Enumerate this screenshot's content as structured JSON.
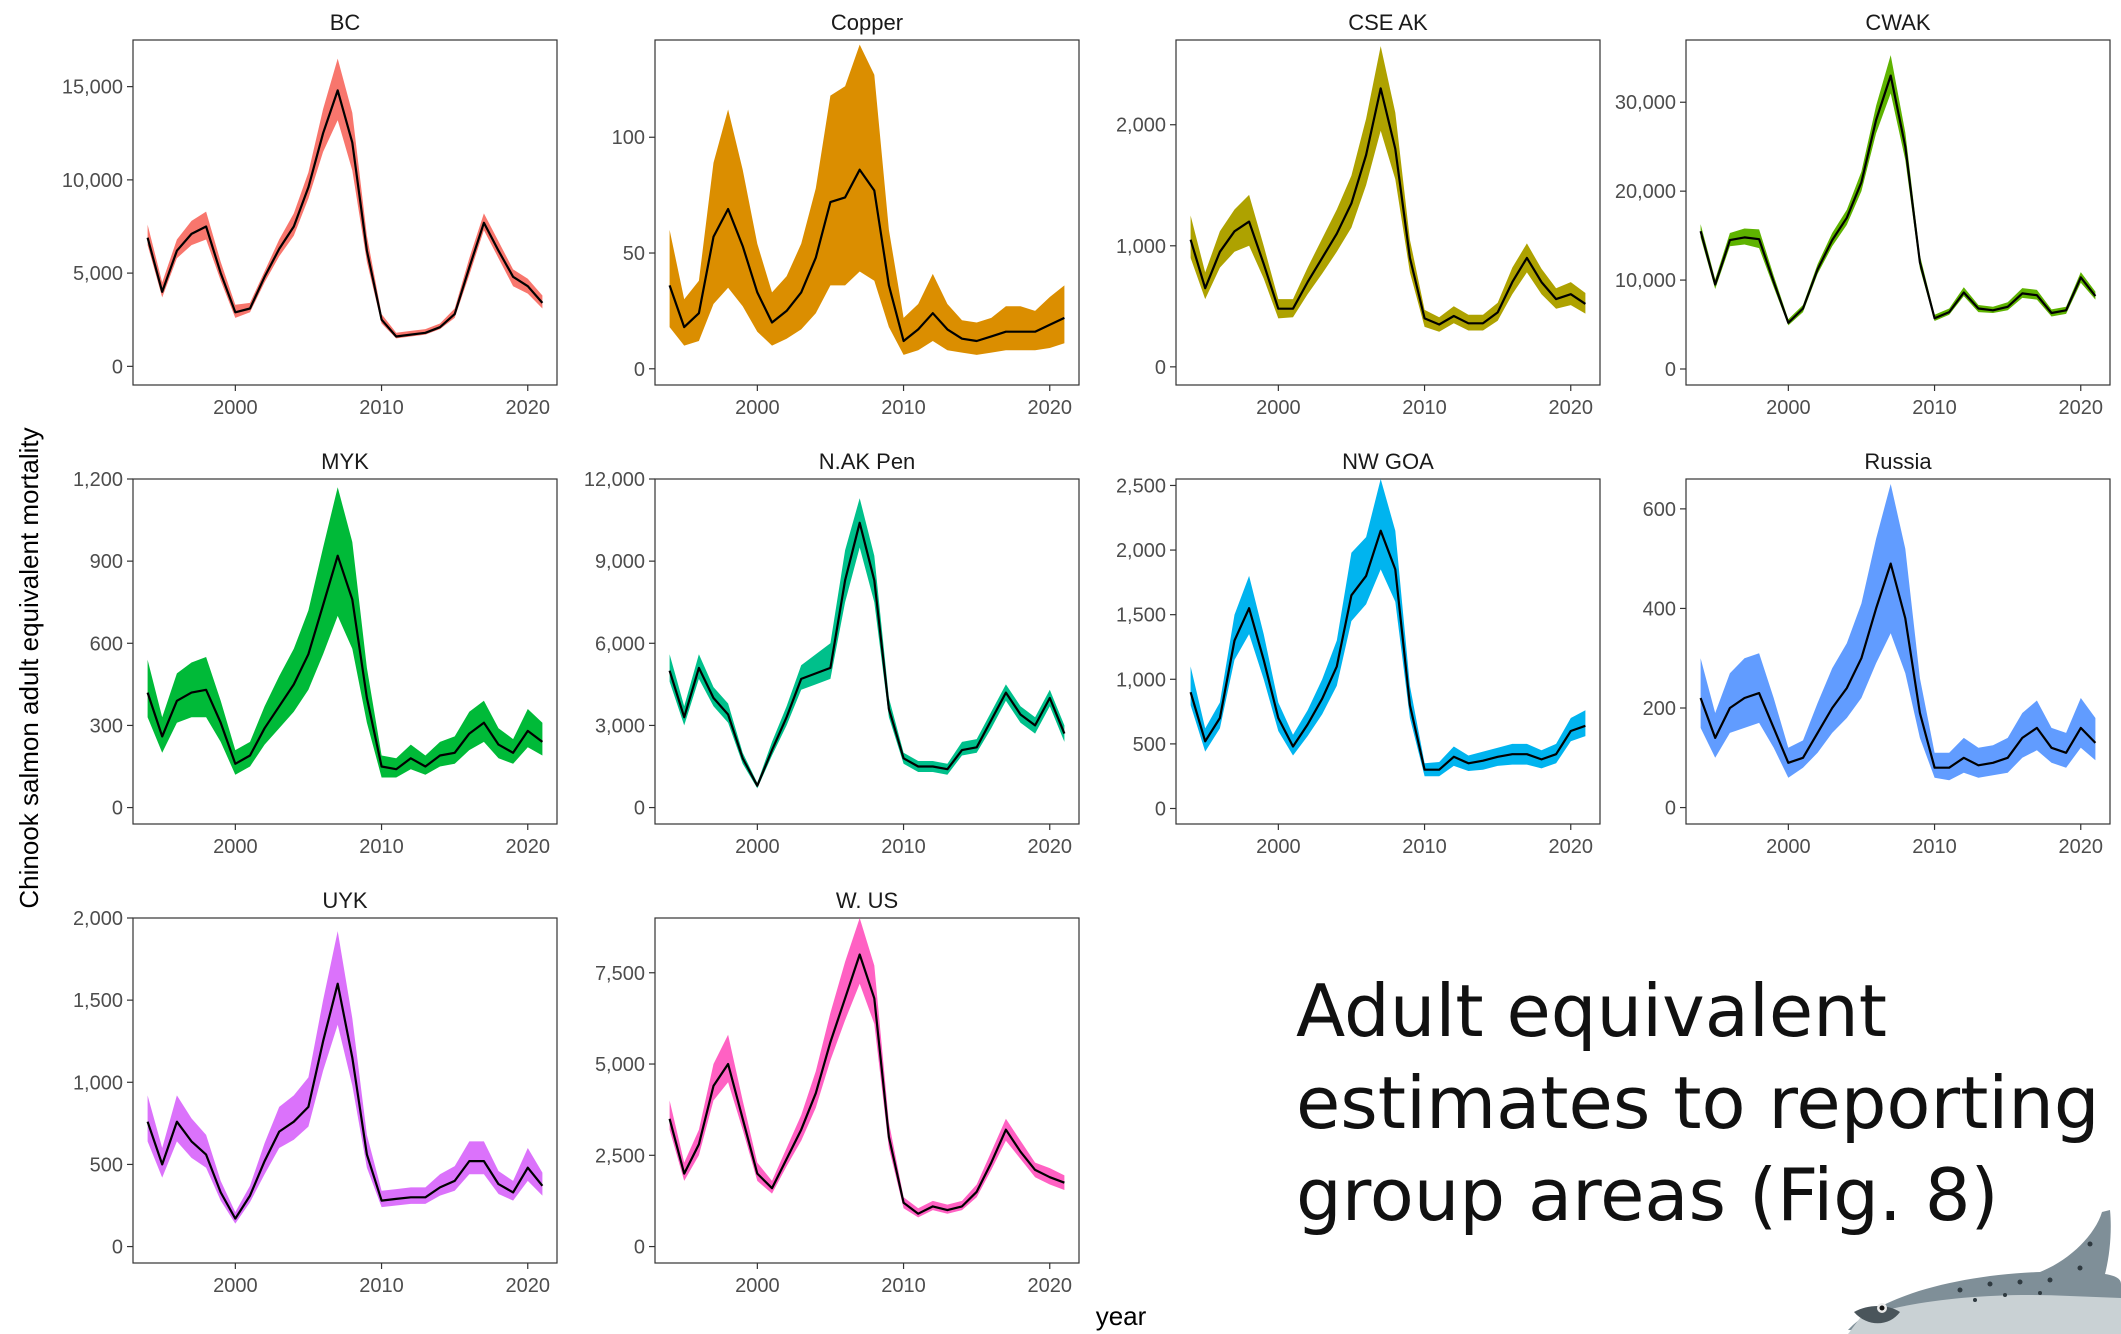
{
  "slide_title": {
    "line1": "Adult equivalent",
    "line2": "estimates to reporting",
    "line3": "group areas (Fig. 8)"
  },
  "fish_icon_name": "chinook-salmon-icon",
  "chart_data": {
    "type": "area",
    "xlabel": "year",
    "ylabel": "Chinook salmon adult equivalent mortality",
    "x": [
      1994,
      1995,
      1996,
      1997,
      1998,
      1999,
      2000,
      2001,
      2002,
      2003,
      2004,
      2005,
      2006,
      2007,
      2008,
      2009,
      2010,
      2011,
      2012,
      2013,
      2014,
      2015,
      2016,
      2017,
      2018,
      2019,
      2020,
      2021
    ],
    "xlim": [
      1993,
      2022
    ],
    "xticks": [
      2000,
      2010,
      2020
    ],
    "series": [
      {
        "name": "BC",
        "color": "#F8766D",
        "ylim": [
          -1000,
          17500
        ],
        "yticks": [
          {
            "v": 0,
            "label": "0"
          },
          {
            "v": 5000,
            "label": "5,000"
          },
          {
            "v": 10000,
            "label": "10,000"
          },
          {
            "v": 15000,
            "label": "15,000"
          }
        ],
        "mean": [
          6900,
          4000,
          6200,
          7100,
          7500,
          5000,
          2900,
          3100,
          4800,
          6300,
          7500,
          9600,
          12500,
          14800,
          12000,
          6200,
          2500,
          1600,
          1700,
          1800,
          2100,
          2800,
          5300,
          7700,
          6200,
          4800,
          4300,
          3400
        ],
        "lo": [
          6500,
          3700,
          5800,
          6500,
          6800,
          4600,
          2600,
          2900,
          4500,
          5900,
          7000,
          9000,
          11500,
          13200,
          10500,
          5600,
          2300,
          1500,
          1600,
          1700,
          2000,
          2600,
          4900,
          7300,
          5800,
          4300,
          3900,
          3100
        ],
        "hi": [
          7600,
          4500,
          6800,
          7800,
          8300,
          5600,
          3300,
          3400,
          5100,
          6800,
          8200,
          10400,
          13800,
          16500,
          13600,
          7000,
          2800,
          1800,
          1900,
          2000,
          2300,
          3100,
          5800,
          8200,
          6700,
          5200,
          4700,
          3800
        ]
      },
      {
        "name": "Copper",
        "color": "#DB8E00",
        "ylim": [
          -7,
          142
        ],
        "yticks": [
          {
            "v": 0,
            "label": "0"
          },
          {
            "v": 50,
            "label": "50"
          },
          {
            "v": 100,
            "label": "100"
          }
        ],
        "mean": [
          36,
          18,
          24,
          57,
          69,
          53,
          33,
          20,
          25,
          33,
          48,
          72,
          74,
          86,
          77,
          36,
          12,
          17,
          24,
          17,
          13,
          12,
          14,
          16,
          16,
          16,
          19,
          22
        ],
        "lo": [
          18,
          10,
          12,
          28,
          35,
          27,
          16,
          10,
          13,
          17,
          24,
          36,
          36,
          42,
          38,
          18,
          6,
          8,
          12,
          8,
          7,
          6,
          7,
          8,
          8,
          8,
          9,
          11
        ],
        "hi": [
          60,
          30,
          38,
          89,
          112,
          86,
          54,
          33,
          40,
          54,
          78,
          118,
          122,
          140,
          127,
          60,
          22,
          28,
          41,
          28,
          21,
          20,
          22,
          27,
          27,
          25,
          31,
          36
        ]
      },
      {
        "name": "CSE AK",
        "color": "#AEA200",
        "ylim": [
          -150,
          2700
        ],
        "yticks": [
          {
            "v": 0,
            "label": "0"
          },
          {
            "v": 1000,
            "label": "1,000"
          },
          {
            "v": 2000,
            "label": "2,000"
          }
        ],
        "mean": [
          1050,
          650,
          950,
          1120,
          1200,
          850,
          480,
          480,
          700,
          900,
          1100,
          1350,
          1750,
          2300,
          1800,
          900,
          400,
          350,
          420,
          360,
          360,
          450,
          700,
          900,
          700,
          560,
          600,
          520
        ],
        "lo": [
          900,
          560,
          820,
          950,
          1000,
          730,
          400,
          410,
          600,
          770,
          950,
          1150,
          1500,
          1950,
          1550,
          780,
          330,
          290,
          360,
          300,
          300,
          380,
          600,
          780,
          600,
          480,
          510,
          440
        ],
        "hi": [
          1250,
          780,
          1120,
          1300,
          1420,
          1000,
          560,
          560,
          820,
          1060,
          1300,
          1580,
          2050,
          2650,
          2100,
          1050,
          470,
          410,
          500,
          430,
          430,
          530,
          820,
          1020,
          810,
          650,
          700,
          610
        ]
      },
      {
        "name": "CWAK",
        "color": "#5EB300",
        "ylim": [
          -1800,
          37000
        ],
        "yticks": [
          {
            "v": 0,
            "label": "0"
          },
          {
            "v": 10000,
            "label": "10,000"
          },
          {
            "v": 20000,
            "label": "20,000"
          },
          {
            "v": 30000,
            "label": "30,000"
          }
        ],
        "mean": [
          15500,
          9500,
          14500,
          14800,
          14600,
          9800,
          5200,
          6800,
          11200,
          14500,
          17000,
          21000,
          28000,
          33000,
          25000,
          12000,
          5700,
          6400,
          8600,
          6800,
          6600,
          7000,
          8500,
          8300,
          6300,
          6600,
          10300,
          8200
        ],
        "lo": [
          14800,
          9000,
          13800,
          14000,
          13600,
          9200,
          4900,
          6400,
          10700,
          13800,
          16200,
          20000,
          26500,
          31000,
          23500,
          11300,
          5400,
          6100,
          8200,
          6400,
          6300,
          6600,
          8000,
          7800,
          5900,
          6200,
          9700,
          7800
        ],
        "hi": [
          16300,
          10100,
          15300,
          15800,
          15700,
          10500,
          5600,
          7200,
          11800,
          15300,
          17900,
          22200,
          29600,
          35300,
          26600,
          12800,
          6100,
          6800,
          9200,
          7200,
          7000,
          7500,
          9100,
          8900,
          6700,
          7000,
          10900,
          8700
        ]
      },
      {
        "name": "MYK",
        "color": "#00BA38",
        "ylim": [
          -60,
          1200
        ],
        "yticks": [
          {
            "v": 0,
            "label": "0"
          },
          {
            "v": 300,
            "label": "300"
          },
          {
            "v": 600,
            "label": "600"
          },
          {
            "v": 900,
            "label": "900"
          },
          {
            "v": 1200,
            "label": "1,200"
          }
        ],
        "mean": [
          420,
          260,
          390,
          420,
          430,
          310,
          160,
          190,
          290,
          370,
          450,
          560,
          740,
          920,
          760,
          400,
          150,
          140,
          180,
          150,
          190,
          200,
          270,
          310,
          230,
          200,
          280,
          240
        ],
        "lo": [
          330,
          200,
          310,
          330,
          330,
          240,
          120,
          150,
          230,
          290,
          350,
          430,
          560,
          700,
          580,
          310,
          110,
          110,
          140,
          120,
          150,
          160,
          210,
          240,
          180,
          160,
          220,
          190
        ],
        "hi": [
          540,
          330,
          490,
          530,
          550,
          390,
          210,
          240,
          370,
          480,
          580,
          720,
          950,
          1170,
          970,
          510,
          190,
          180,
          230,
          190,
          240,
          260,
          350,
          390,
          290,
          250,
          360,
          310
        ]
      },
      {
        "name": "N.AK Pen",
        "color": "#00C08B",
        "ylim": [
          -600,
          12000
        ],
        "yticks": [
          {
            "v": 0,
            "label": "0"
          },
          {
            "v": 3000,
            "label": "3,000"
          },
          {
            "v": 6000,
            "label": "6,000"
          },
          {
            "v": 9000,
            "label": "9,000"
          },
          {
            "v": 12000,
            "label": "12,000"
          }
        ],
        "mean": [
          5000,
          3300,
          5100,
          4000,
          3400,
          1800,
          800,
          2100,
          3300,
          4700,
          4900,
          5100,
          8300,
          10400,
          8300,
          3600,
          1800,
          1500,
          1500,
          1400,
          2100,
          2200,
          3200,
          4200,
          3400,
          3000,
          4000,
          2700
        ],
        "lo": [
          4600,
          3000,
          4700,
          3700,
          3100,
          1600,
          700,
          1900,
          3000,
          4300,
          4500,
          4700,
          7500,
          9500,
          7500,
          3300,
          1600,
          1300,
          1300,
          1200,
          1900,
          2000,
          2900,
          3900,
          3100,
          2700,
          3700,
          2400
        ],
        "hi": [
          5600,
          3700,
          5600,
          4400,
          3800,
          2000,
          900,
          2400,
          3700,
          5200,
          5600,
          6000,
          9400,
          11300,
          9200,
          4000,
          2000,
          1700,
          1700,
          1600,
          2400,
          2500,
          3500,
          4500,
          3700,
          3300,
          4300,
          3000
        ]
      },
      {
        "name": "NW GOA",
        "color": "#00B4EF",
        "ylim": [
          -120,
          2550
        ],
        "yticks": [
          {
            "v": 0,
            "label": "0"
          },
          {
            "v": 500,
            "label": "500"
          },
          {
            "v": 1000,
            "label": "1,000"
          },
          {
            "v": 1500,
            "label": "1,500"
          },
          {
            "v": 2000,
            "label": "2,000"
          },
          {
            "v": 2500,
            "label": "2,500"
          }
        ],
        "mean": [
          900,
          520,
          700,
          1300,
          1550,
          1150,
          700,
          480,
          650,
          850,
          1100,
          1650,
          1800,
          2150,
          1850,
          800,
          300,
          300,
          400,
          350,
          370,
          400,
          420,
          420,
          380,
          420,
          600,
          640
        ],
        "lo": [
          800,
          440,
          620,
          1150,
          1350,
          1000,
          600,
          410,
          560,
          730,
          950,
          1450,
          1580,
          1850,
          1600,
          700,
          250,
          250,
          330,
          290,
          300,
          330,
          340,
          340,
          310,
          350,
          520,
          560
        ],
        "hi": [
          1100,
          620,
          820,
          1500,
          1800,
          1350,
          820,
          570,
          760,
          1000,
          1300,
          1980,
          2100,
          2550,
          2150,
          950,
          350,
          360,
          480,
          410,
          440,
          470,
          500,
          500,
          450,
          500,
          700,
          760
        ]
      },
      {
        "name": "Russia",
        "color": "#619CFF",
        "ylim": [
          -33,
          660
        ],
        "yticks": [
          {
            "v": 0,
            "label": "0"
          },
          {
            "v": 200,
            "label": "200"
          },
          {
            "v": 400,
            "label": "400"
          },
          {
            "v": 600,
            "label": "600"
          }
        ],
        "mean": [
          220,
          140,
          200,
          220,
          230,
          160,
          90,
          100,
          150,
          200,
          240,
          300,
          400,
          490,
          380,
          190,
          80,
          80,
          100,
          85,
          90,
          100,
          140,
          160,
          120,
          110,
          160,
          130
        ],
        "lo": [
          160,
          100,
          150,
          160,
          170,
          120,
          60,
          80,
          110,
          150,
          180,
          220,
          290,
          350,
          270,
          140,
          60,
          55,
          70,
          60,
          65,
          70,
          100,
          115,
          90,
          80,
          120,
          95
        ],
        "hi": [
          300,
          190,
          270,
          300,
          310,
          220,
          120,
          135,
          210,
          280,
          330,
          410,
          540,
          650,
          520,
          260,
          110,
          110,
          140,
          120,
          125,
          140,
          190,
          215,
          160,
          150,
          220,
          180
        ]
      },
      {
        "name": "UYK",
        "color": "#DB72FB",
        "ylim": [
          -100,
          2000
        ],
        "yticks": [
          {
            "v": 0,
            "label": "0"
          },
          {
            "v": 500,
            "label": "500"
          },
          {
            "v": 1000,
            "label": "1,000"
          },
          {
            "v": 1500,
            "label": "1,500"
          },
          {
            "v": 2000,
            "label": "2,000"
          }
        ],
        "mean": [
          760,
          500,
          760,
          640,
          560,
          330,
          170,
          310,
          520,
          700,
          760,
          850,
          1250,
          1600,
          1150,
          560,
          280,
          290,
          300,
          300,
          360,
          400,
          520,
          520,
          380,
          330,
          480,
          370
        ],
        "lo": [
          640,
          420,
          640,
          540,
          480,
          280,
          140,
          270,
          440,
          600,
          650,
          730,
          1070,
          1350,
          980,
          480,
          240,
          250,
          260,
          260,
          310,
          340,
          440,
          440,
          320,
          280,
          400,
          310
        ],
        "hi": [
          920,
          600,
          920,
          780,
          680,
          400,
          210,
          370,
          630,
          850,
          920,
          1030,
          1500,
          1920,
          1390,
          680,
          340,
          350,
          360,
          360,
          440,
          490,
          640,
          640,
          460,
          400,
          600,
          450
        ]
      },
      {
        "name": "W. US",
        "color": "#FF61C3",
        "ylim": [
          -450,
          9000
        ],
        "yticks": [
          {
            "v": 0,
            "label": "0"
          },
          {
            "v": 2500,
            "label": "2,500"
          },
          {
            "v": 5000,
            "label": "5,000"
          },
          {
            "v": 7500,
            "label": "7,500"
          }
        ],
        "mean": [
          3500,
          2000,
          2800,
          4400,
          5000,
          3500,
          2000,
          1600,
          2400,
          3200,
          4200,
          5600,
          6800,
          8000,
          6800,
          3000,
          1200,
          900,
          1100,
          1000,
          1100,
          1500,
          2300,
          3200,
          2600,
          2100,
          1900,
          1750
        ],
        "lo": [
          3200,
          1800,
          2500,
          4000,
          4500,
          3200,
          1800,
          1450,
          2200,
          2900,
          3800,
          5100,
          6200,
          7200,
          6100,
          2700,
          1050,
          800,
          1000,
          900,
          1000,
          1350,
          2100,
          2900,
          2400,
          1900,
          1700,
          1550
        ],
        "hi": [
          4000,
          2300,
          3200,
          5000,
          5800,
          4000,
          2300,
          1800,
          2700,
          3600,
          4800,
          6400,
          7800,
          9000,
          7700,
          3400,
          1350,
          1050,
          1250,
          1150,
          1250,
          1700,
          2600,
          3500,
          2900,
          2300,
          2150,
          1950
        ]
      }
    ]
  }
}
